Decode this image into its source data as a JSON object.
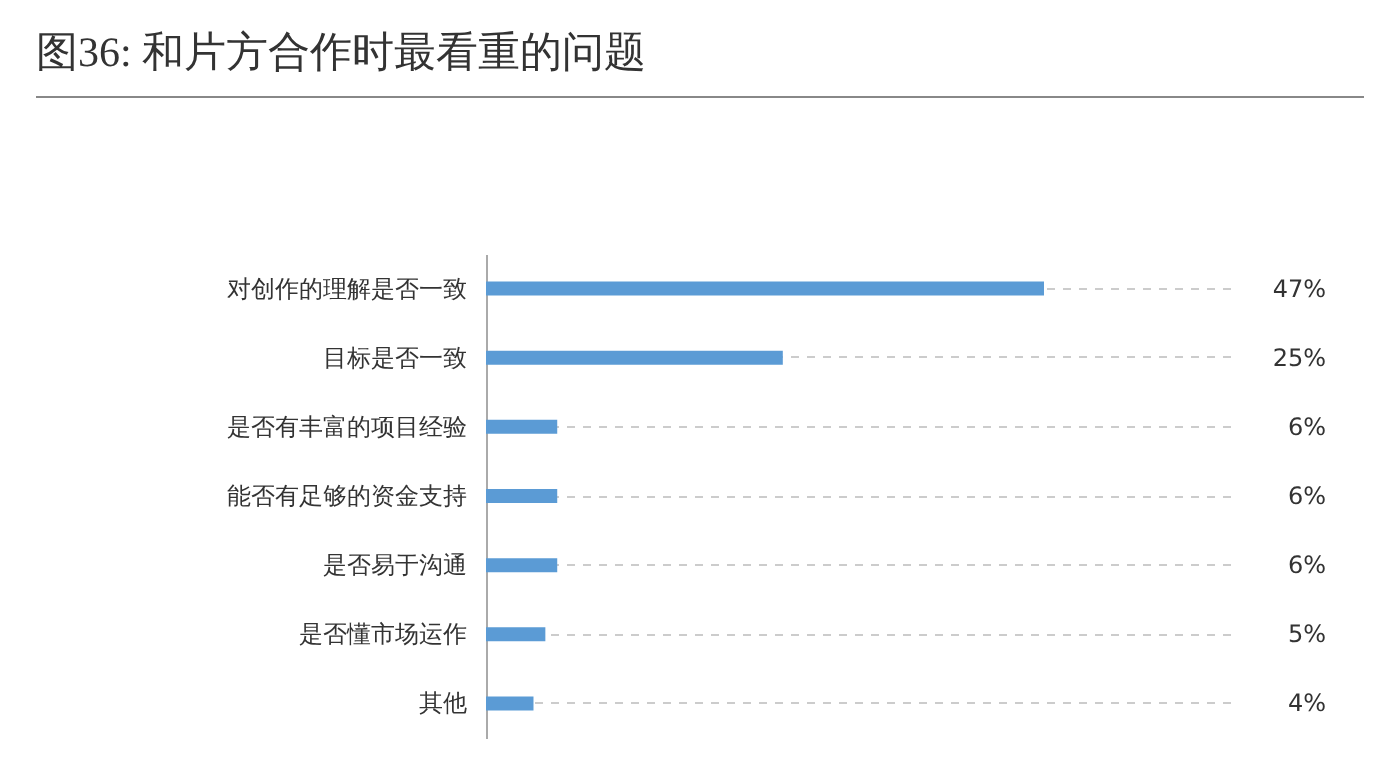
{
  "chart_data": {
    "type": "bar",
    "orientation": "horizontal",
    "title": "图36: 和片方合作时最看重的问题",
    "categories": [
      "对创作的理解是否一致",
      "目标是否一致",
      "是否有丰富的项目经验",
      "能否有足够的资金支持",
      "是否易于沟通",
      "是否懂市场运作",
      "其他"
    ],
    "values": [
      47,
      25,
      6,
      6,
      6,
      5,
      4
    ],
    "value_labels": [
      "47%",
      "25%",
      "6%",
      "6%",
      "6%",
      "5%",
      "4%"
    ],
    "color": "#5b9bd5",
    "grid": "y"
  }
}
